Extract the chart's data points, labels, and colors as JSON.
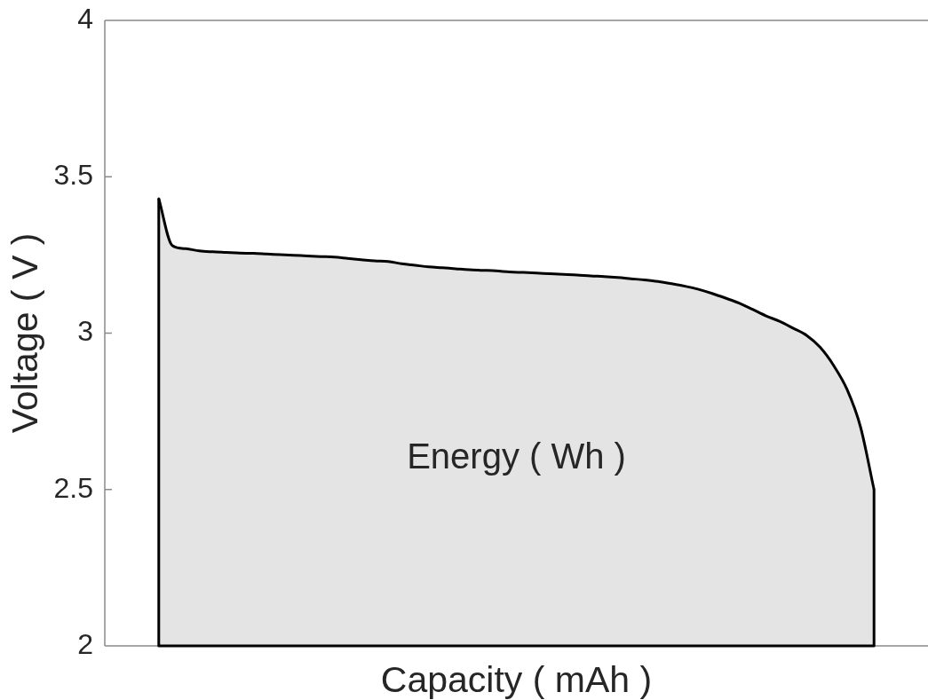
{
  "chart_data": {
    "type": "area",
    "xlabel": "Capacity ( mAh )",
    "ylabel": "Voltage ( V )",
    "categories": [
      null,
      null,
      null,
      null,
      null,
      null,
      null,
      null,
      null,
      null,
      null,
      null,
      null,
      null,
      null,
      null,
      null,
      null,
      null,
      null,
      null,
      null,
      null,
      null,
      null,
      null,
      null,
      null,
      null,
      null,
      null,
      null,
      null,
      null,
      null,
      null,
      null,
      null,
      null,
      null,
      null,
      null,
      null,
      null,
      null,
      null,
      null,
      null,
      null,
      null,
      null,
      null,
      null,
      null,
      null,
      null,
      null,
      null,
      null,
      null,
      null,
      null
    ],
    "values": [
      null,
      null,
      null,
      null,
      3.43,
      3.28,
      3.27,
      3.263,
      3.26,
      3.258,
      3.256,
      3.255,
      3.253,
      3.251,
      3.249,
      3.247,
      3.245,
      3.243,
      3.239,
      3.235,
      3.231,
      3.229,
      3.222,
      3.217,
      3.212,
      3.209,
      3.206,
      3.203,
      3.201,
      3.199,
      3.196,
      3.194,
      3.192,
      3.19,
      3.188,
      3.186,
      3.183,
      3.181,
      3.178,
      3.174,
      3.17,
      3.165,
      3.158,
      3.15,
      3.14,
      3.127,
      3.112,
      3.096,
      3.076,
      3.055,
      3.038,
      3.016,
      2.993,
      2.955,
      2.897,
      2.82,
      2.7,
      2.5,
      null,
      null,
      null,
      null
    ],
    "color": "#e4e4e4",
    "ylim": [
      2,
      4
    ],
    "yticks": [
      2,
      2.5,
      3,
      3.5,
      4
    ],
    "tick_labels": "y",
    "grid": false,
    "annotations": [
      "Energy ( Wh )"
    ]
  }
}
